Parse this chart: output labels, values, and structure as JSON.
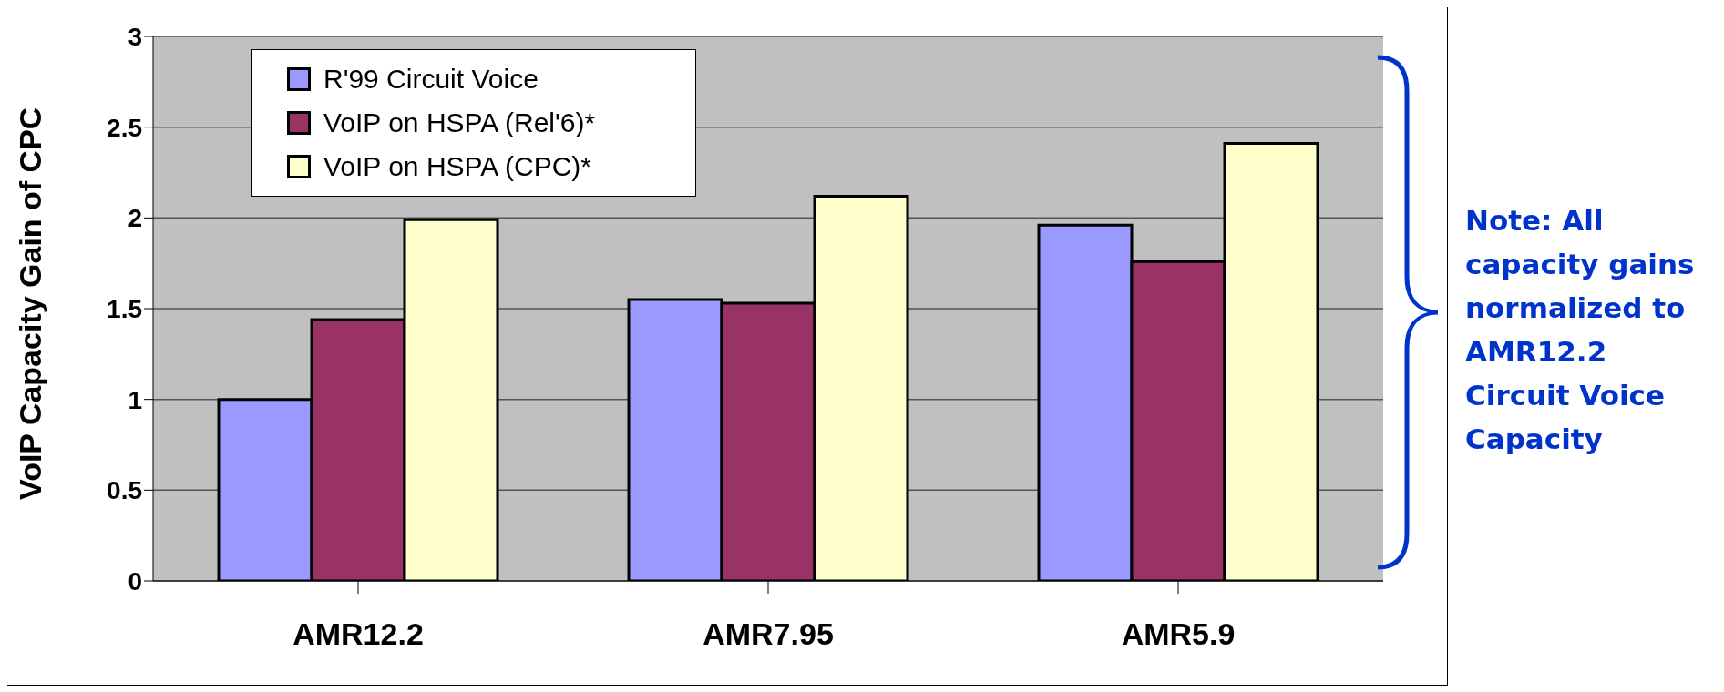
{
  "chart_data": {
    "type": "bar",
    "ylabel": "VoIP Capacity Gain of CPC",
    "categories": [
      "AMR12.2",
      "AMR7.95",
      "AMR5.9"
    ],
    "series": [
      {
        "name": "R'99 Circuit Voice",
        "color": "#9999ff",
        "values": [
          1.0,
          1.55,
          1.96
        ]
      },
      {
        "name": "VoIP on HSPA (Rel'6)*",
        "color": "#993366",
        "values": [
          1.44,
          1.53,
          1.76
        ]
      },
      {
        "name": "VoIP on HSPA (CPC)*",
        "color": "#ffffcc",
        "values": [
          1.99,
          2.12,
          2.41
        ]
      }
    ],
    "ylim": [
      0,
      3
    ],
    "yticks": [
      0,
      0.5,
      1,
      1.5,
      2,
      2.5,
      3
    ],
    "grid": "y",
    "legend": "top left",
    "annotations": [
      "Note: All capacity gains normalized to AMR12.2 Circuit Voice Capacity"
    ]
  }
}
